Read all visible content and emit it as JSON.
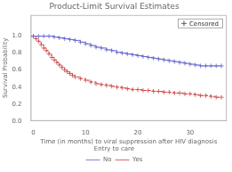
{
  "chart_data": {
    "type": "step",
    "title": "Product-Limit Survival Estimates",
    "xlabel": "Time (in months) to viral suppression after HIV diagnosis",
    "ylabel": "Survival Probability",
    "xlim": [
      -0.5,
      37
    ],
    "ylim": [
      0.0,
      1.25
    ],
    "xticks": [
      0,
      10,
      20,
      30
    ],
    "yticks": [
      {
        "value": 0.0,
        "label": "0.0"
      },
      0.2,
      0.4,
      0.6,
      0.8,
      {
        "value": 1.0,
        "label": "1.0"
      }
    ],
    "grid": false,
    "legend": "bottom",
    "legend_title": "Entry to care",
    "annotations": [
      {
        "text": "Censored",
        "marker": "+"
      }
    ],
    "series": [
      {
        "name": "No",
        "color": "#6666cc",
        "marker": "+",
        "line_style": "solid",
        "x": [
          0,
          1,
          2,
          3,
          4,
          5,
          6,
          7,
          8,
          9,
          10,
          11,
          12,
          13,
          14,
          15,
          16,
          17,
          18,
          19,
          20,
          21,
          22,
          23,
          24,
          25,
          26,
          27,
          28,
          29,
          30,
          31,
          32,
          33,
          34,
          35,
          36
        ],
        "values": [
          1.0,
          1.0,
          1.0,
          1.0,
          0.99,
          0.98,
          0.97,
          0.96,
          0.95,
          0.93,
          0.91,
          0.89,
          0.87,
          0.86,
          0.84,
          0.83,
          0.81,
          0.8,
          0.79,
          0.78,
          0.77,
          0.76,
          0.75,
          0.74,
          0.73,
          0.72,
          0.71,
          0.7,
          0.69,
          0.68,
          0.67,
          0.66,
          0.65,
          0.65,
          0.65,
          0.65,
          0.65
        ]
      },
      {
        "name": "Yes",
        "color": "#cc4444",
        "marker": "+",
        "line_style": "dashed",
        "x": [
          0,
          0.5,
          1,
          1.5,
          2,
          2.5,
          3,
          3.5,
          4,
          4.5,
          5,
          5.5,
          6,
          6.5,
          7,
          7.5,
          8,
          9,
          10,
          11,
          12,
          13,
          14,
          15,
          16,
          17,
          18,
          19,
          20,
          21,
          22,
          23,
          24,
          25,
          26,
          27,
          28,
          29,
          30,
          31,
          32,
          33,
          34,
          35,
          36
        ],
        "values": [
          1.0,
          0.97,
          0.94,
          0.9,
          0.86,
          0.83,
          0.79,
          0.75,
          0.72,
          0.69,
          0.66,
          0.63,
          0.6,
          0.58,
          0.56,
          0.54,
          0.52,
          0.5,
          0.48,
          0.46,
          0.44,
          0.43,
          0.42,
          0.41,
          0.4,
          0.39,
          0.38,
          0.37,
          0.37,
          0.36,
          0.36,
          0.35,
          0.35,
          0.34,
          0.34,
          0.33,
          0.33,
          0.32,
          0.32,
          0.31,
          0.3,
          0.3,
          0.29,
          0.28,
          0.28
        ]
      }
    ]
  }
}
